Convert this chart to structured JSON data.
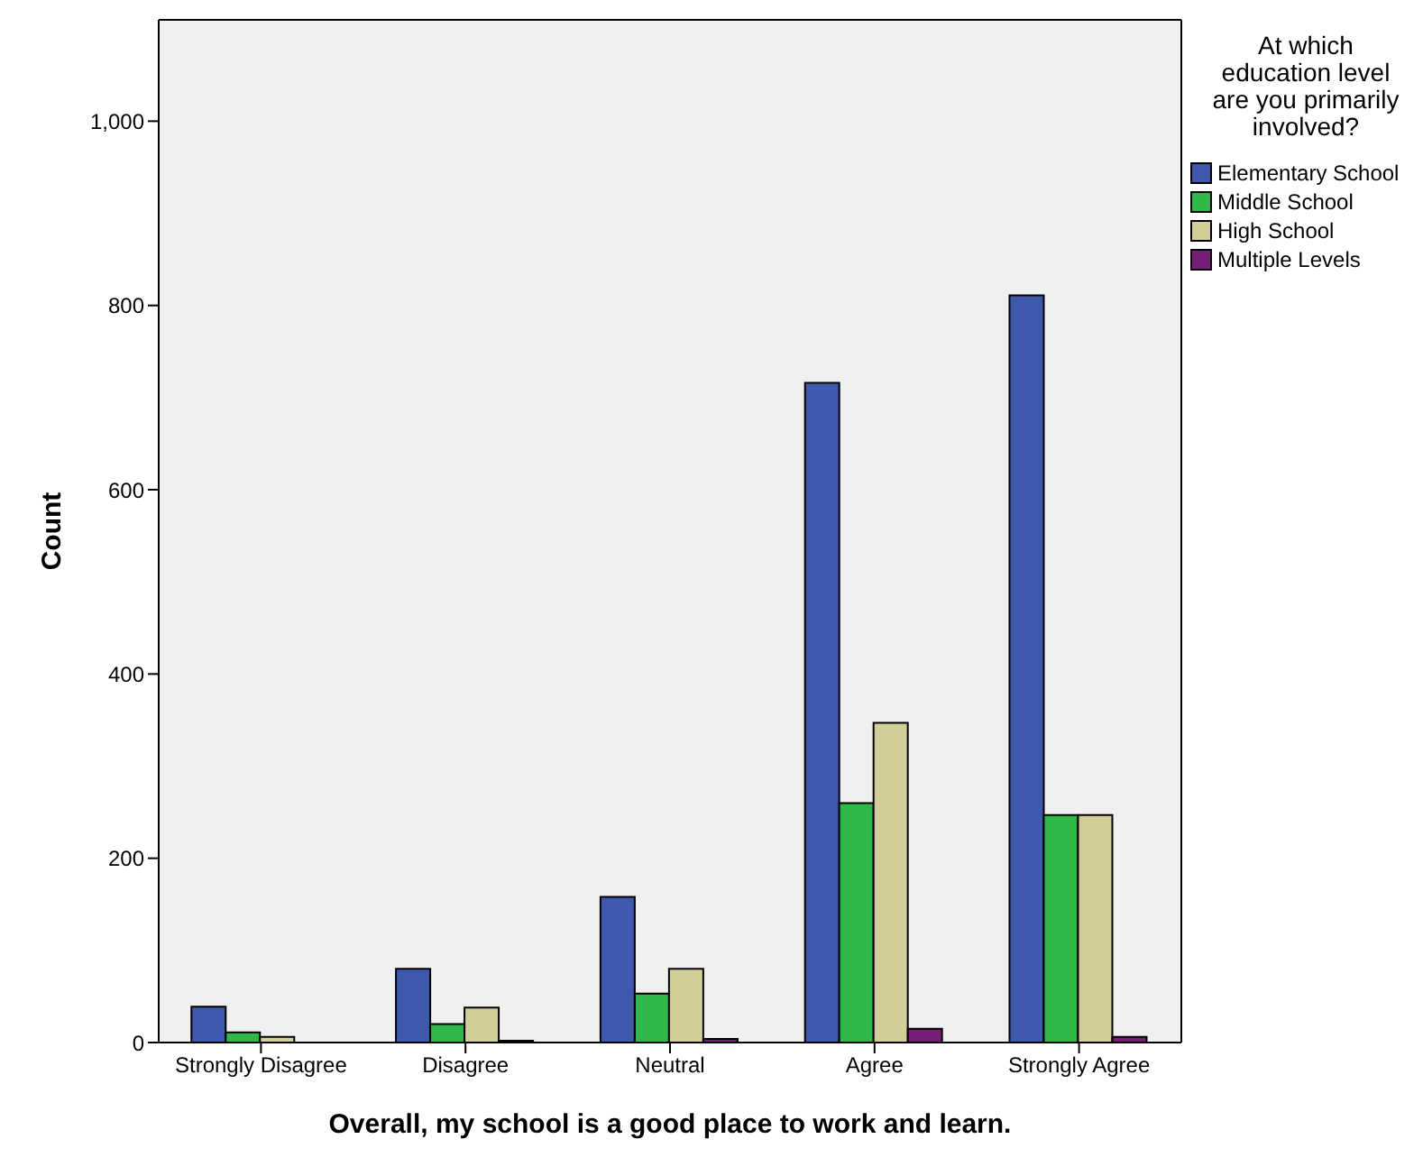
{
  "chart_data": {
    "type": "bar",
    "xlabel": "Overall, my school is a good place to work and learn.",
    "ylabel": "Count",
    "legend_title": "At which education level are you primarily involved?",
    "categories": [
      "Strongly Disagree",
      "Disagree",
      "Neutral",
      "Agree",
      "Strongly Agree"
    ],
    "series": [
      {
        "name": "Elementary School",
        "color": "#3e58ac",
        "values": [
          39,
          80,
          158,
          716,
          811
        ]
      },
      {
        "name": "Middle School",
        "color": "#2fb84a",
        "values": [
          11,
          20,
          53,
          260,
          247
        ]
      },
      {
        "name": "High School",
        "color": "#d3ce99",
        "values": [
          6,
          38,
          80,
          347,
          247
        ]
      },
      {
        "name": "Multiple Levels",
        "color": "#761d75",
        "values": [
          0,
          2,
          4,
          15,
          6
        ]
      }
    ],
    "ylim": [
      0,
      1110
    ],
    "yticks": [
      0,
      200,
      400,
      600,
      800,
      {
        "value": 1000,
        "label": "1,000"
      }
    ],
    "grid": false,
    "legend": "right"
  }
}
